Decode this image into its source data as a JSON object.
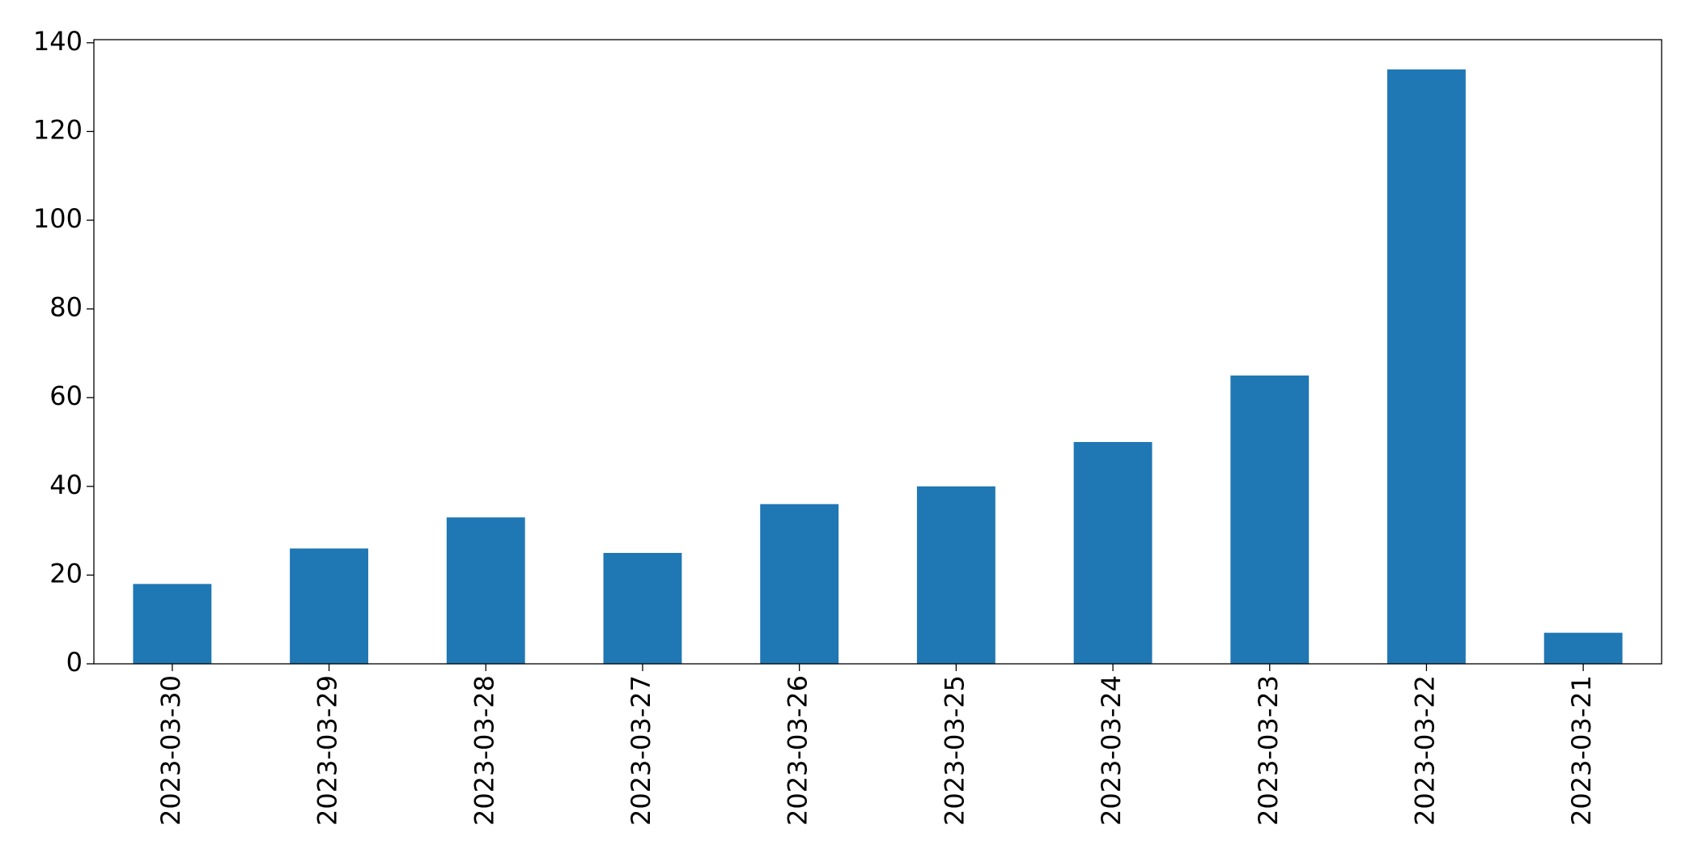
{
  "chart_data": {
    "type": "bar",
    "categories": [
      "2023-03-30",
      "2023-03-29",
      "2023-03-28",
      "2023-03-27",
      "2023-03-26",
      "2023-03-25",
      "2023-03-24",
      "2023-03-23",
      "2023-03-22",
      "2023-03-21"
    ],
    "values": [
      18,
      26,
      33,
      25,
      36,
      40,
      50,
      65,
      134,
      7
    ],
    "color": "#1f77b4",
    "ylim": [
      0,
      140.7
    ],
    "yticks": [
      0,
      20,
      40,
      60,
      80,
      100,
      120,
      140
    ],
    "grid": false
  }
}
